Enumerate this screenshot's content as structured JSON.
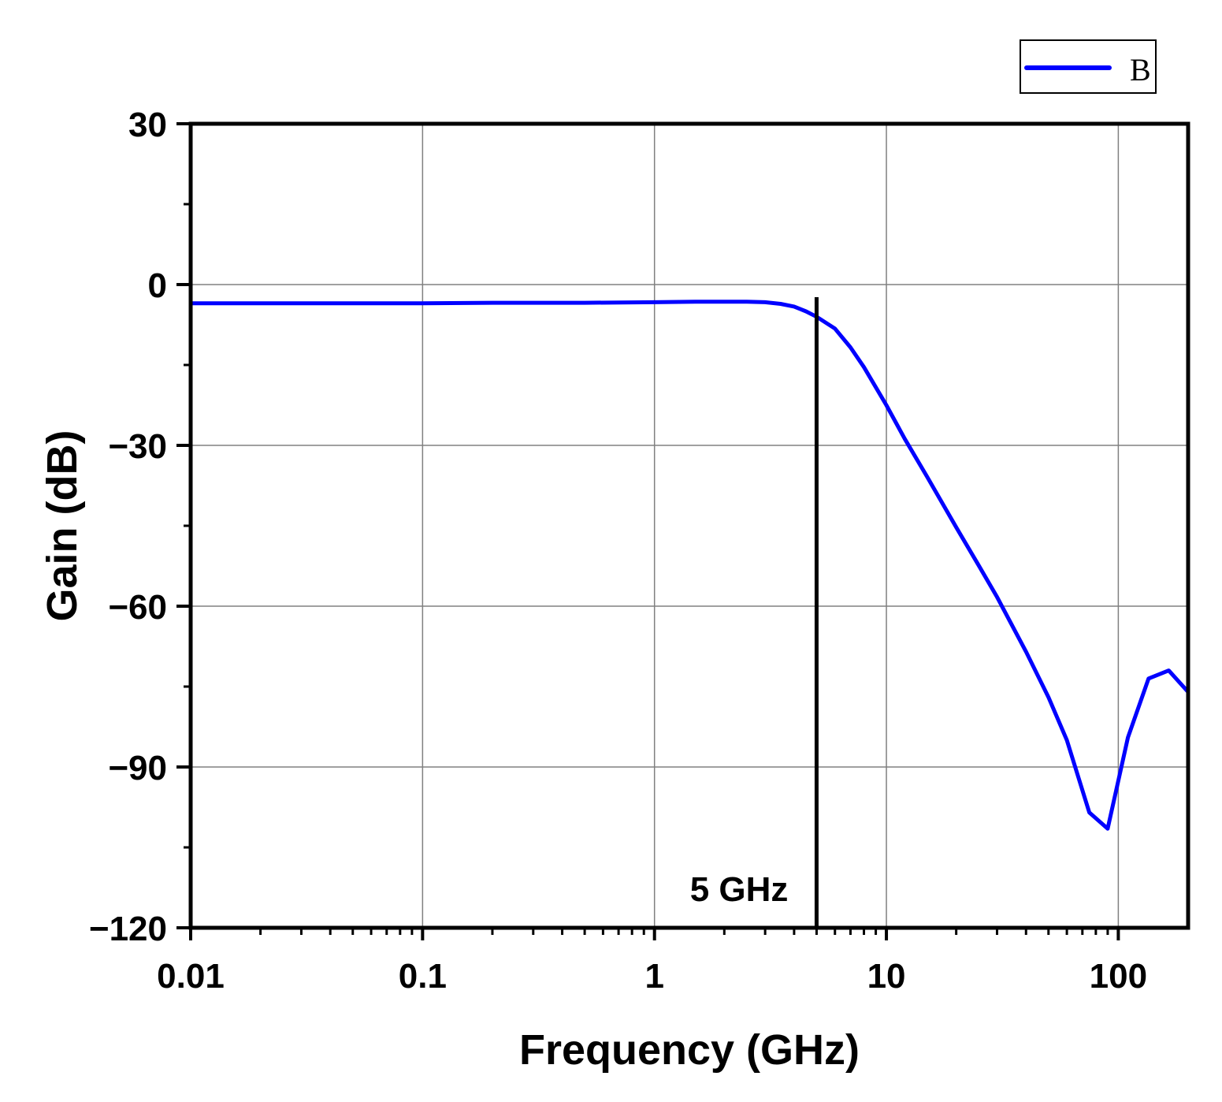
{
  "chart_data": {
    "type": "line",
    "title": "",
    "xlabel": "Frequency (GHz)",
    "ylabel": "Gain (dB)",
    "xscale": "log",
    "xlim": [
      0.01,
      200
    ],
    "ylim": [
      -120,
      30
    ],
    "x_ticks": [
      "0.01",
      "0.1",
      "1",
      "10",
      "100"
    ],
    "y_ticks": [
      "30",
      "0",
      "−30",
      "−60",
      "−90",
      "−120"
    ],
    "grid": true,
    "legend_position": "top-right",
    "series": [
      {
        "name": "B",
        "color": "#0000ff",
        "x": [
          0.01,
          0.02,
          0.05,
          0.1,
          0.2,
          0.5,
          1,
          1.5,
          2,
          2.5,
          3,
          3.5,
          4,
          4.5,
          5,
          6,
          7,
          8,
          10,
          12,
          15,
          20,
          25,
          30,
          40,
          50,
          60,
          75,
          90,
          110,
          135,
          165,
          200
        ],
        "y": [
          -3.5,
          -3.5,
          -3.5,
          -3.5,
          -3.4,
          -3.4,
          -3.3,
          -3.2,
          -3.2,
          -3.2,
          -3.3,
          -3.6,
          -4.1,
          -5.0,
          -6.0,
          -8.2,
          -11.7,
          -15.4,
          -22.5,
          -28.8,
          -35.9,
          -45.3,
          -52.4,
          -58.3,
          -68.5,
          -77.0,
          -85.0,
          -98.5,
          -101.5,
          -84.5,
          -73.5,
          -72.0,
          -76.0
        ]
      }
    ],
    "annotations": [
      {
        "text": "5 GHz",
        "x": 5
      }
    ]
  }
}
